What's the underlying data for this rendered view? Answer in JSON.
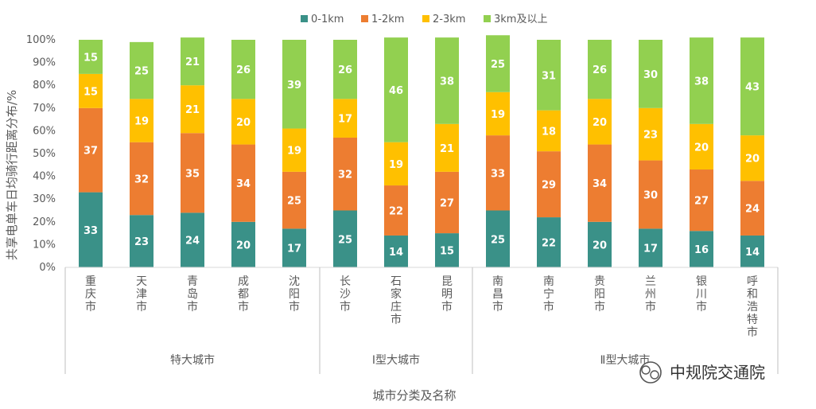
{
  "chart_data": {
    "type": "bar",
    "stacked": true,
    "percent_stacked": true,
    "categories": [
      "重庆市",
      "天津市",
      "青岛市",
      "成都市",
      "沈阳市",
      "长沙市",
      "石家庄市",
      "昆明市",
      "南昌市",
      "南宁市",
      "贵阳市",
      "兰州市",
      "银川市",
      "呼和浩特市"
    ],
    "groups": [
      {
        "label": "特大城市",
        "categories": [
          "重庆市",
          "天津市",
          "青岛市",
          "成都市",
          "沈阳市"
        ]
      },
      {
        "label": "Ⅰ型大城市",
        "categories": [
          "长沙市",
          "石家庄市",
          "昆明市"
        ]
      },
      {
        "label": "Ⅱ型大城市",
        "categories": [
          "南昌市",
          "南宁市",
          "贵阳市",
          "兰州市",
          "银川市",
          "呼和浩特市"
        ]
      }
    ],
    "series": [
      {
        "name": "0-1km",
        "color": "#3a9188",
        "values": [
          33,
          23,
          24,
          20,
          17,
          25,
          14,
          15,
          25,
          22,
          20,
          17,
          16,
          14
        ]
      },
      {
        "name": "1-2km",
        "color": "#ed7d31",
        "values": [
          37,
          32,
          35,
          34,
          25,
          32,
          22,
          27,
          33,
          29,
          34,
          30,
          27,
          24
        ]
      },
      {
        "name": "2-3km",
        "color": "#ffc000",
        "values": [
          15,
          19,
          21,
          20,
          19,
          17,
          19,
          21,
          19,
          18,
          20,
          23,
          20,
          20
        ]
      },
      {
        "name": "3km及以上",
        "color": "#92d050",
        "values": [
          15,
          25,
          21,
          26,
          39,
          26,
          46,
          38,
          25,
          31,
          26,
          30,
          38,
          43
        ]
      }
    ],
    "ylabel": "共享电单车日均骑行距离分布/%",
    "xlabel": "城市分类及名称",
    "ylim": [
      0,
      100
    ],
    "yticks": [
      "0%",
      "10%",
      "20%",
      "30%",
      "40%",
      "50%",
      "60%",
      "70%",
      "80%",
      "90%",
      "100%"
    ],
    "legend_position": "top",
    "grid": false
  },
  "watermark": {
    "text": "中规院交通院",
    "icon": "wechat-icon"
  }
}
